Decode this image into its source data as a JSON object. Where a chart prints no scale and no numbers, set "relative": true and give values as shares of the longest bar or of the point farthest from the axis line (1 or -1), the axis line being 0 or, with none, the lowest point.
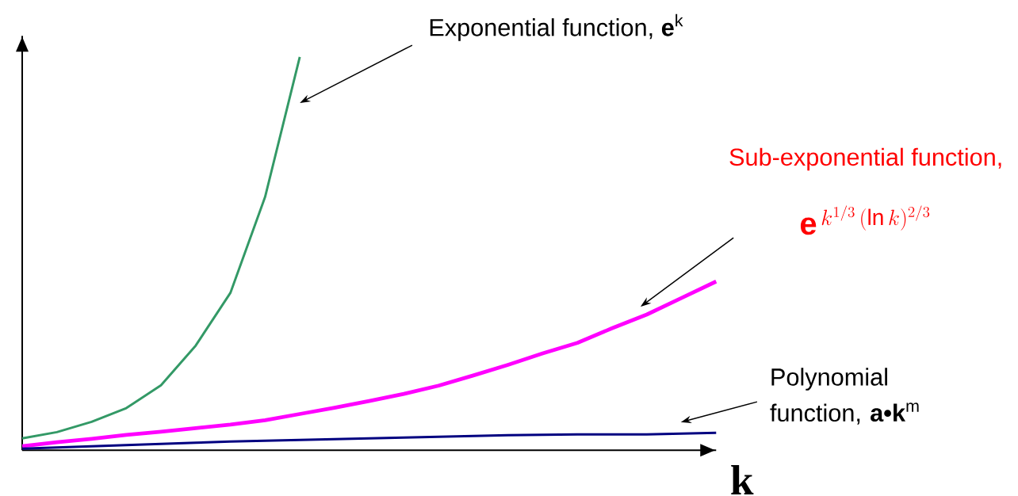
{
  "chart_data": {
    "type": "line",
    "relative": true,
    "xlabel": "k",
    "categories": [
      null,
      null,
      null,
      null,
      null,
      null,
      null,
      null,
      null,
      null,
      null,
      null,
      null,
      null,
      null,
      null,
      null,
      null,
      null,
      null,
      null
    ],
    "series": [
      {
        "color": "#339966",
        "values": [
          0.03,
          0.046,
          0.072,
          0.107,
          0.165,
          0.266,
          0.4,
          0.644,
          1,
          null,
          null,
          null,
          null,
          null,
          null,
          null,
          null,
          null,
          null,
          null,
          null
        ]
      },
      {
        "color": "#ff00ff",
        "values": [
          0.01,
          0.02,
          0.029,
          0.039,
          0.047,
          0.056,
          0.065,
          0.076,
          0.092,
          0.108,
          0.125,
          0.143,
          0.164,
          0.19,
          0.217,
          0.246,
          0.273,
          0.31,
          0.345,
          0.387,
          0.429
        ]
      },
      {
        "color": "#000080",
        "values": [
          0.004,
          0.007,
          0.01,
          0.013,
          0.016,
          0.019,
          0.022,
          0.024,
          0.026,
          0.028,
          0.03,
          0.032,
          0.034,
          0.036,
          0.038,
          0.039,
          0.04,
          0.04,
          0.04,
          0.042,
          0.044
        ]
      }
    ],
    "annotations": [
      "Exponential function, **e**$^{k}$",
      "Sub-exponential function,",
      "\\mathbf{e}^{\\,k^{1/3}\\,(\\ln k)^{2/3}}",
      "Polynomial function, **a•k**$^{m}$"
    ]
  }
}
